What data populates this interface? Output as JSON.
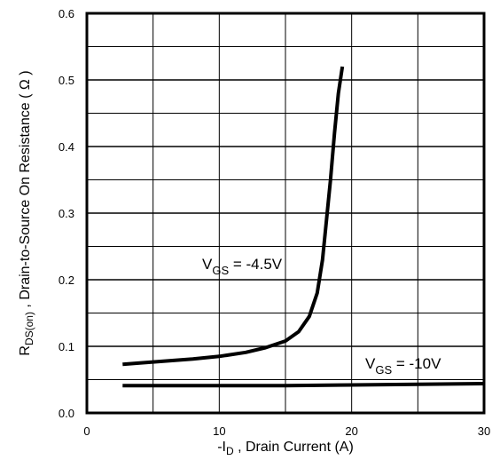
{
  "chart_data": {
    "type": "line",
    "xlabel": {
      "prefix": "-I",
      "sub": "D",
      "suffix": " , Drain Current  (A)"
    },
    "ylabel": {
      "prefix": "R",
      "sub": "DS(on)",
      "suffix": " ,  Drain-to-Source On Resistance ( Ω )"
    },
    "xlim": [
      0,
      30
    ],
    "ylim": [
      0,
      0.6
    ],
    "x_ticks": [
      0,
      10,
      20,
      30
    ],
    "x_tick_labels": [
      "0",
      "10",
      "20",
      "30"
    ],
    "y_ticks": [
      0.0,
      0.1,
      0.2,
      0.3,
      0.4,
      0.5,
      0.6
    ],
    "y_tick_labels": [
      "0.0",
      "0.1",
      "0.2",
      "0.3",
      "0.4",
      "0.5",
      "0.6"
    ],
    "grid": true,
    "series": [
      {
        "name": "VGS = -4.5V",
        "label": {
          "prefix": "V",
          "sub": "GS",
          "suffix": " = -4.5V"
        },
        "x": [
          2.7,
          4,
          6,
          8,
          10,
          12,
          13.5,
          15,
          16,
          16.8,
          17.4,
          17.8,
          18.1,
          18.4,
          18.7,
          19.0,
          19.3
        ],
        "y": [
          0.073,
          0.075,
          0.078,
          0.081,
          0.085,
          0.091,
          0.098,
          0.108,
          0.122,
          0.145,
          0.18,
          0.23,
          0.29,
          0.35,
          0.42,
          0.48,
          0.52
        ]
      },
      {
        "name": "VGS = -10V",
        "label": {
          "prefix": "V",
          "sub": "GS",
          "suffix": " = -10V"
        },
        "x": [
          2.7,
          10,
          15,
          20,
          25,
          30
        ],
        "y": [
          0.041,
          0.041,
          0.041,
          0.042,
          0.043,
          0.044
        ]
      }
    ]
  }
}
